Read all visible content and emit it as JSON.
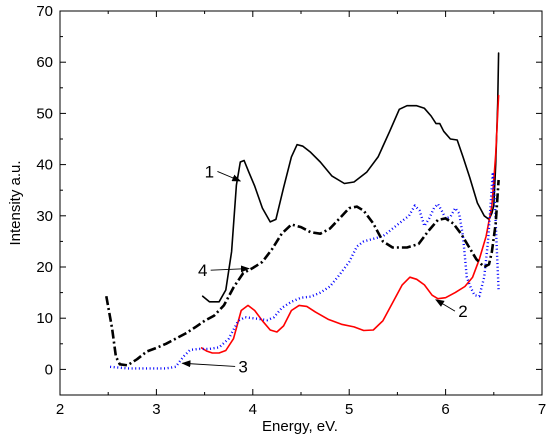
{
  "chart_data": {
    "type": "line",
    "title": "",
    "xlabel": "Energy, eV.",
    "ylabel": "Intensity a.u.",
    "xlim": [
      2,
      7
    ],
    "ylim": [
      -5,
      70
    ],
    "x_ticks": [
      2,
      3,
      4,
      5,
      6,
      7
    ],
    "y_ticks": [
      0,
      10,
      20,
      30,
      40,
      50,
      60,
      70
    ],
    "grid": false,
    "series": [
      {
        "name": "1",
        "color": "#000000",
        "style": "solid",
        "points": [
          [
            3.48,
            14.3
          ],
          [
            3.55,
            13.2
          ],
          [
            3.65,
            13.2
          ],
          [
            3.72,
            15.5
          ],
          [
            3.78,
            23.0
          ],
          [
            3.83,
            36.0
          ],
          [
            3.87,
            40.5
          ],
          [
            3.91,
            40.8
          ],
          [
            3.96,
            38.5
          ],
          [
            4.02,
            35.8
          ],
          [
            4.1,
            31.5
          ],
          [
            4.18,
            28.8
          ],
          [
            4.24,
            29.3
          ],
          [
            4.32,
            35.5
          ],
          [
            4.4,
            41.5
          ],
          [
            4.46,
            43.9
          ],
          [
            4.52,
            43.6
          ],
          [
            4.6,
            42.4
          ],
          [
            4.7,
            40.5
          ],
          [
            4.82,
            37.8
          ],
          [
            4.95,
            36.3
          ],
          [
            5.05,
            36.6
          ],
          [
            5.18,
            38.5
          ],
          [
            5.3,
            41.5
          ],
          [
            5.42,
            46.5
          ],
          [
            5.52,
            50.8
          ],
          [
            5.6,
            51.5
          ],
          [
            5.7,
            51.5
          ],
          [
            5.78,
            51.0
          ],
          [
            5.85,
            49.5
          ],
          [
            5.9,
            48.0
          ],
          [
            5.94,
            48.0
          ],
          [
            5.98,
            46.5
          ],
          [
            6.05,
            45.0
          ],
          [
            6.12,
            44.8
          ],
          [
            6.18,
            41.5
          ],
          [
            6.25,
            37.5
          ],
          [
            6.33,
            32.5
          ],
          [
            6.4,
            30.0
          ],
          [
            6.45,
            29.3
          ],
          [
            6.48,
            30.5
          ],
          [
            6.5,
            32.0
          ],
          [
            6.52,
            40.0
          ],
          [
            6.54,
            52.0
          ],
          [
            6.55,
            61.8
          ]
        ]
      },
      {
        "name": "2",
        "color": "#ff0000",
        "style": "solid",
        "points": [
          [
            3.47,
            4.2
          ],
          [
            3.52,
            3.6
          ],
          [
            3.58,
            3.2
          ],
          [
            3.65,
            3.2
          ],
          [
            3.72,
            3.7
          ],
          [
            3.8,
            6.0
          ],
          [
            3.88,
            11.5
          ],
          [
            3.95,
            12.5
          ],
          [
            4.02,
            11.5
          ],
          [
            4.1,
            9.5
          ],
          [
            4.18,
            7.7
          ],
          [
            4.25,
            7.3
          ],
          [
            4.32,
            8.5
          ],
          [
            4.4,
            11.5
          ],
          [
            4.48,
            12.5
          ],
          [
            4.56,
            12.3
          ],
          [
            4.65,
            11.2
          ],
          [
            4.78,
            9.8
          ],
          [
            4.92,
            8.8
          ],
          [
            5.05,
            8.3
          ],
          [
            5.15,
            7.6
          ],
          [
            5.25,
            7.7
          ],
          [
            5.35,
            9.5
          ],
          [
            5.45,
            13.0
          ],
          [
            5.55,
            16.5
          ],
          [
            5.63,
            18.0
          ],
          [
            5.7,
            17.6
          ],
          [
            5.78,
            16.5
          ],
          [
            5.86,
            14.5
          ],
          [
            5.92,
            13.8
          ],
          [
            6.0,
            14.0
          ],
          [
            6.1,
            15.0
          ],
          [
            6.2,
            16.2
          ],
          [
            6.28,
            18.0
          ],
          [
            6.35,
            21.5
          ],
          [
            6.42,
            26.0
          ],
          [
            6.48,
            32.0
          ],
          [
            6.52,
            42.0
          ],
          [
            6.55,
            53.5
          ]
        ]
      },
      {
        "name": "3",
        "color": "#0000ff",
        "style": "dotted",
        "points": [
          [
            2.52,
            0.5
          ],
          [
            2.7,
            0.2
          ],
          [
            2.9,
            0.2
          ],
          [
            3.1,
            0.2
          ],
          [
            3.2,
            0.5
          ],
          [
            3.28,
            2.5
          ],
          [
            3.35,
            3.8
          ],
          [
            3.45,
            4.0
          ],
          [
            3.55,
            4.0
          ],
          [
            3.65,
            4.3
          ],
          [
            3.75,
            6.0
          ],
          [
            3.85,
            9.5
          ],
          [
            3.92,
            10.2
          ],
          [
            4.0,
            10.0
          ],
          [
            4.08,
            9.8
          ],
          [
            4.15,
            9.6
          ],
          [
            4.22,
            10.2
          ],
          [
            4.3,
            12.0
          ],
          [
            4.4,
            13.2
          ],
          [
            4.5,
            14.0
          ],
          [
            4.6,
            14.2
          ],
          [
            4.7,
            15.0
          ],
          [
            4.8,
            16.2
          ],
          [
            4.9,
            18.5
          ],
          [
            5.0,
            21.0
          ],
          [
            5.08,
            24.0
          ],
          [
            5.15,
            25.0
          ],
          [
            5.25,
            25.5
          ],
          [
            5.35,
            26.0
          ],
          [
            5.45,
            27.5
          ],
          [
            5.55,
            29.0
          ],
          [
            5.62,
            30.0
          ],
          [
            5.68,
            32.0
          ],
          [
            5.73,
            31.0
          ],
          [
            5.78,
            28.0
          ],
          [
            5.83,
            29.5
          ],
          [
            5.88,
            31.5
          ],
          [
            5.92,
            32.3
          ],
          [
            5.96,
            31.0
          ],
          [
            6.0,
            29.5
          ],
          [
            6.05,
            29.8
          ],
          [
            6.1,
            31.5
          ],
          [
            6.14,
            30.5
          ],
          [
            6.18,
            26.0
          ],
          [
            6.22,
            18.0
          ],
          [
            6.26,
            16.0
          ],
          [
            6.3,
            14.5
          ],
          [
            6.35,
            14.3
          ],
          [
            6.4,
            18.0
          ],
          [
            6.44,
            25.0
          ],
          [
            6.47,
            33.0
          ],
          [
            6.49,
            38.5
          ],
          [
            6.51,
            33.0
          ],
          [
            6.53,
            24.0
          ],
          [
            6.55,
            15.5
          ]
        ]
      },
      {
        "name": "4",
        "color": "#000000",
        "style": "dashdot",
        "points": [
          [
            2.48,
            14.3
          ],
          [
            2.54,
            8.0
          ],
          [
            2.58,
            2.5
          ],
          [
            2.62,
            1.0
          ],
          [
            2.7,
            0.8
          ],
          [
            2.8,
            2.0
          ],
          [
            2.9,
            3.5
          ],
          [
            3.0,
            4.2
          ],
          [
            3.1,
            5.0
          ],
          [
            3.2,
            6.0
          ],
          [
            3.3,
            7.0
          ],
          [
            3.4,
            8.2
          ],
          [
            3.5,
            9.5
          ],
          [
            3.6,
            10.5
          ],
          [
            3.7,
            12.5
          ],
          [
            3.8,
            16.0
          ],
          [
            3.9,
            18.8
          ],
          [
            4.0,
            19.8
          ],
          [
            4.1,
            21.0
          ],
          [
            4.2,
            23.5
          ],
          [
            4.3,
            26.5
          ],
          [
            4.4,
            28.3
          ],
          [
            4.5,
            27.8
          ],
          [
            4.6,
            26.8
          ],
          [
            4.7,
            26.5
          ],
          [
            4.8,
            27.5
          ],
          [
            4.9,
            29.5
          ],
          [
            5.0,
            31.5
          ],
          [
            5.08,
            31.8
          ],
          [
            5.15,
            31.0
          ],
          [
            5.25,
            28.5
          ],
          [
            5.35,
            25.0
          ],
          [
            5.45,
            23.8
          ],
          [
            5.6,
            23.8
          ],
          [
            5.72,
            24.5
          ],
          [
            5.82,
            27.0
          ],
          [
            5.92,
            29.2
          ],
          [
            6.0,
            29.5
          ],
          [
            6.08,
            28.5
          ],
          [
            6.16,
            26.5
          ],
          [
            6.24,
            24.0
          ],
          [
            6.32,
            21.5
          ],
          [
            6.4,
            20.0
          ],
          [
            6.45,
            20.5
          ],
          [
            6.48,
            23.0
          ],
          [
            6.52,
            28.5
          ],
          [
            6.55,
            37.0
          ]
        ]
      }
    ],
    "annotations": [
      {
        "label": "1",
        "text_at": [
          3.55,
          37.5
        ],
        "arrow_to": [
          3.87,
          36.8
        ]
      },
      {
        "label": "2",
        "text_at": [
          6.18,
          10.2
        ],
        "arrow_to": [
          5.9,
          13.6
        ]
      },
      {
        "label": "3",
        "text_at": [
          3.9,
          -0.6
        ],
        "arrow_to": [
          3.27,
          1.2
        ]
      },
      {
        "label": "4",
        "text_at": [
          3.48,
          18.2
        ],
        "arrow_to": [
          3.96,
          19.7
        ]
      }
    ]
  }
}
